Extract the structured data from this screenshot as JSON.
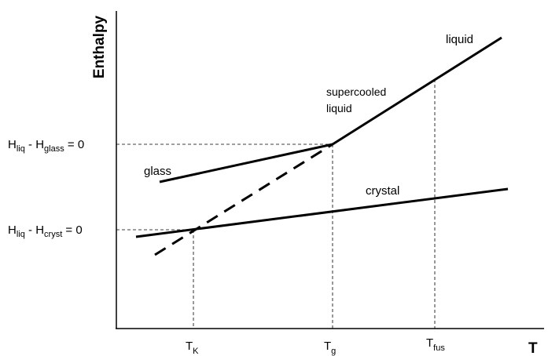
{
  "axes": {
    "y_label": "Enthalpy",
    "x_label": "T"
  },
  "ticks": [
    {
      "parts": [
        "T",
        "K"
      ]
    },
    {
      "parts": [
        "T",
        "g"
      ]
    },
    {
      "parts": [
        "T",
        "fus"
      ]
    }
  ],
  "levels": [
    {
      "parts": [
        "H",
        "liq",
        " - H",
        "glass",
        " = 0"
      ]
    },
    {
      "parts": [
        "H",
        "liq",
        " - H",
        "cryst",
        " = 0"
      ]
    }
  ],
  "curves": {
    "glass": "glass",
    "crystal": "crystal",
    "liquid": "liquid",
    "supercooled": [
      "supercooled",
      "liquid"
    ]
  }
}
